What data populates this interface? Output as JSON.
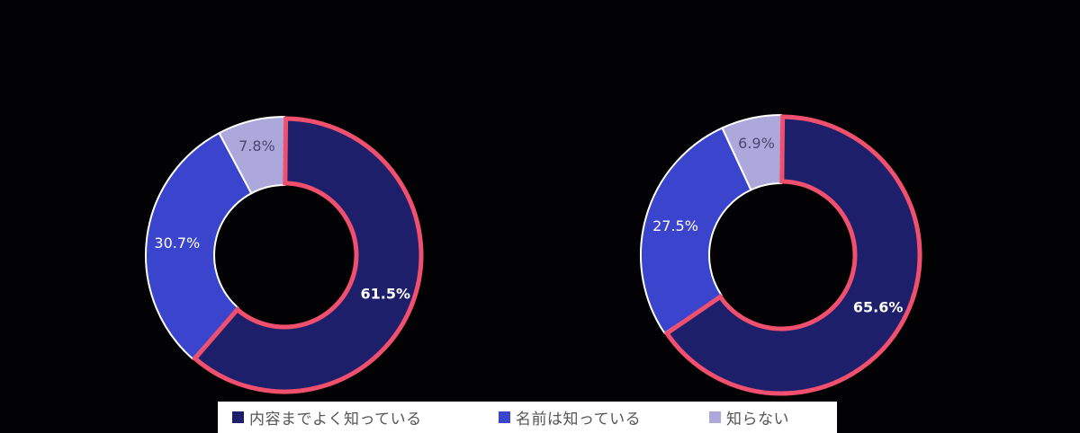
{
  "chart_data": [
    {
      "type": "pie",
      "variant": "donut",
      "title": "",
      "categories": [
        "内容までよく知っている",
        "名前は知っている",
        "知らない"
      ],
      "values": [
        61.5,
        30.7,
        7.8
      ],
      "labels": [
        "61.5%",
        "30.7%",
        "7.8%"
      ],
      "colors": [
        "#1e1f6b",
        "#3a44cc",
        "#ada8dc"
      ],
      "highlighted_segment": "内容までよく知っている",
      "highlight_color": "#f0506e",
      "legend_position": "bottom"
    },
    {
      "type": "pie",
      "variant": "donut",
      "title": "",
      "categories": [
        "内容までよく知っている",
        "名前は知っている",
        "知らない"
      ],
      "values": [
        65.6,
        27.5,
        6.9
      ],
      "labels": [
        "65.6%",
        "27.5%",
        "6.9%"
      ],
      "colors": [
        "#1e1f6b",
        "#3a44cc",
        "#ada8dc"
      ],
      "highlighted_segment": "内容までよく知っている",
      "highlight_color": "#f0506e",
      "legend_position": "bottom"
    }
  ],
  "legend": {
    "items": [
      {
        "label": "内容までよく知っている",
        "color": "#1e1f6b"
      },
      {
        "label": "名前は知っている",
        "color": "#3a44cc"
      },
      {
        "label": "知らない",
        "color": "#ada8dc"
      }
    ]
  },
  "colors": {
    "background": "#020104",
    "separator": "#ffffff",
    "highlight_border": "#f0506e",
    "label_light": "#ffffff",
    "label_dark": "#4a4870"
  }
}
